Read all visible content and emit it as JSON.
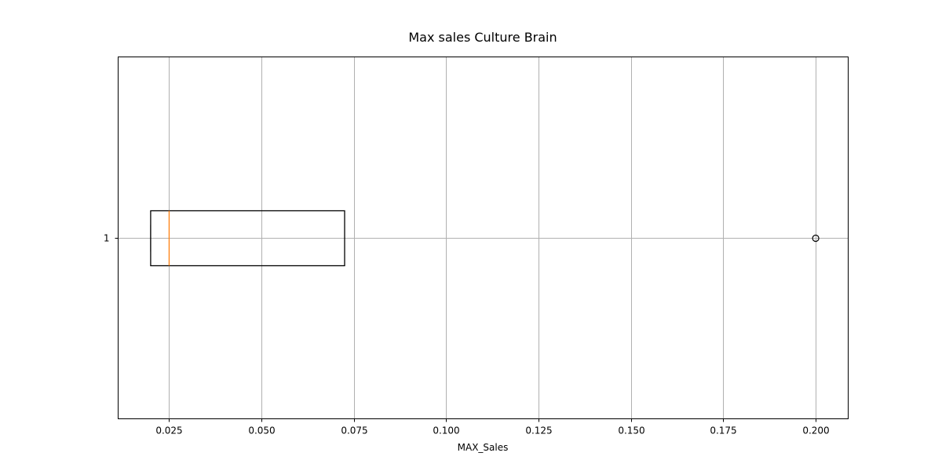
{
  "chart_data": {
    "type": "boxplot",
    "orientation": "horizontal",
    "title": "Max sales Culture Brain",
    "xlabel": "MAX_Sales",
    "ylabel": "",
    "xlim": [
      0.0112,
      0.2088
    ],
    "x_ticks": [
      0.025,
      0.05,
      0.075,
      0.1,
      0.125,
      0.15,
      0.175,
      0.2
    ],
    "x_tick_labels": [
      "0.025",
      "0.050",
      "0.075",
      "0.100",
      "0.125",
      "0.150",
      "0.175",
      "0.200"
    ],
    "y_ticks": [
      1
    ],
    "y_tick_labels": [
      "1"
    ],
    "grid": true,
    "boxes": [
      {
        "position": 1,
        "whisker_low": 0.02,
        "q1": 0.02,
        "median": 0.025,
        "q3": 0.0725,
        "whisker_high": 0.0725,
        "outliers": [
          0.2
        ]
      }
    ],
    "colors": {
      "box": "#000000",
      "median": "#ff7f0e",
      "grid": "#b0b0b0",
      "outlier": "#000000"
    }
  }
}
